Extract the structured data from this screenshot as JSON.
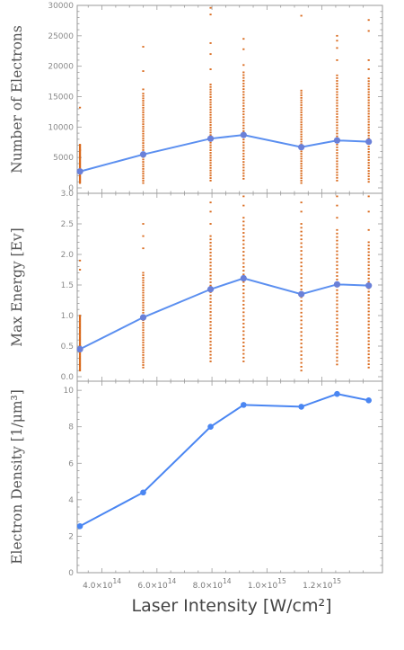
{
  "chart_data": [
    {
      "type": "scatter+line",
      "ylabel": "Number of Electrons",
      "ylim": [
        0,
        30000
      ],
      "yticks": [
        0,
        5000,
        10000,
        15000,
        20000,
        25000,
        30000
      ],
      "ytick_labels": [
        "0",
        "5000",
        "10000",
        "15000",
        "20000",
        "25000",
        "30000"
      ],
      "colors": {
        "line": "#5b8ff0",
        "points": "#d9691c"
      },
      "series": [
        {
          "kind": "mean-line",
          "x": [
            320000000000000.0,
            550000000000000.0,
            795000000000000.0,
            915000000000000.0,
            1125000000000000.0,
            1255000000000000.0,
            1370000000000000.0
          ],
          "values": [
            2700,
            5500,
            8100,
            8700,
            6700,
            7800,
            7600
          ]
        },
        {
          "kind": "samples",
          "x": [
            320000000000000.0,
            550000000000000.0,
            795000000000000.0,
            915000000000000.0,
            1125000000000000.0,
            1255000000000000.0,
            1370000000000000.0
          ],
          "ranges": [
            [
              800,
              7000
            ],
            [
              800,
              15500
            ],
            [
              1200,
              17000
            ],
            [
              1500,
              19000
            ],
            [
              800,
              16000
            ],
            [
              1200,
              18500
            ],
            [
              1000,
              18000
            ]
          ],
          "outliers": [
            [
              13200,
              7100,
              6200
            ],
            [
              16200,
              19200,
              23200
            ],
            [
              19500,
              22000,
              23800,
              28500,
              29600
            ],
            [
              20200,
              22800,
              24500
            ],
            [
              28300
            ],
            [
              21000,
              23000,
              24200,
              25000
            ],
            [
              19500,
              21000,
              25800,
              27600
            ]
          ]
        }
      ]
    },
    {
      "type": "scatter+line",
      "ylabel": "Max Energy [Ev]",
      "ylim": [
        0,
        3.0
      ],
      "yticks": [
        0.0,
        0.5,
        1.0,
        1.5,
        2.0,
        2.5,
        3.0
      ],
      "ytick_labels": [
        "0.0",
        "0.5",
        "1.0",
        "1.5",
        "2.0",
        "2.5",
        "3.0"
      ],
      "colors": {
        "line": "#5b8ff0",
        "points": "#d9691c"
      },
      "series": [
        {
          "kind": "mean-line",
          "x": [
            320000000000000.0,
            550000000000000.0,
            795000000000000.0,
            915000000000000.0,
            1125000000000000.0,
            1255000000000000.0,
            1370000000000000.0
          ],
          "values": [
            0.45,
            0.97,
            1.43,
            1.61,
            1.35,
            1.51,
            1.49
          ]
        },
        {
          "kind": "samples",
          "x": [
            320000000000000.0,
            550000000000000.0,
            795000000000000.0,
            915000000000000.0,
            1125000000000000.0,
            1255000000000000.0,
            1370000000000000.0
          ],
          "ranges": [
            [
              0.1,
              1.0
            ],
            [
              0.15,
              1.7
            ],
            [
              0.25,
              2.3
            ],
            [
              0.25,
              2.6
            ],
            [
              0.1,
              2.5
            ],
            [
              0.2,
              2.4
            ],
            [
              0.15,
              2.2
            ]
          ],
          "outliers": [
            [
              1.75,
              1.9
            ],
            [
              2.1,
              2.3,
              2.5
            ],
            [
              2.5,
              2.7,
              2.85
            ],
            [
              2.8,
              2.95
            ],
            [
              2.7,
              2.85
            ],
            [
              2.6,
              2.8,
              2.95
            ],
            [
              2.4,
              2.7,
              2.95
            ]
          ]
        }
      ]
    },
    {
      "type": "line",
      "ylabel": "Electron Density [1/μm³]",
      "xlabel": "Laser Intensity [W/cm²]",
      "ylim": [
        0,
        10.5
      ],
      "yticks": [
        0,
        2,
        4,
        6,
        8,
        10
      ],
      "ytick_labels": [
        "0",
        "2",
        "4",
        "6",
        "8",
        "10"
      ],
      "xlim": [
        310000000000000.0,
        1420000000000000.0
      ],
      "xticks": [
        400000000000000.0,
        600000000000000.0,
        800000000000000.0,
        1000000000000000.0,
        1200000000000000.0
      ],
      "xtick_labels": [
        {
          "mant": "4.0",
          "exp": "14"
        },
        {
          "mant": "6.0",
          "exp": "14"
        },
        {
          "mant": "8.0",
          "exp": "14"
        },
        {
          "mant": "1.0",
          "exp": "15"
        },
        {
          "mant": "1.2",
          "exp": "15"
        }
      ],
      "colors": {
        "line": "#4a86f2",
        "points": "#4a86f2"
      },
      "series": [
        {
          "kind": "line-with-points",
          "x": [
            320000000000000.0,
            550000000000000.0,
            795000000000000.0,
            915000000000000.0,
            1125000000000000.0,
            1255000000000000.0,
            1370000000000000.0
          ],
          "values": [
            2.55,
            4.4,
            8.0,
            9.2,
            9.1,
            9.8,
            9.45
          ]
        }
      ]
    }
  ]
}
